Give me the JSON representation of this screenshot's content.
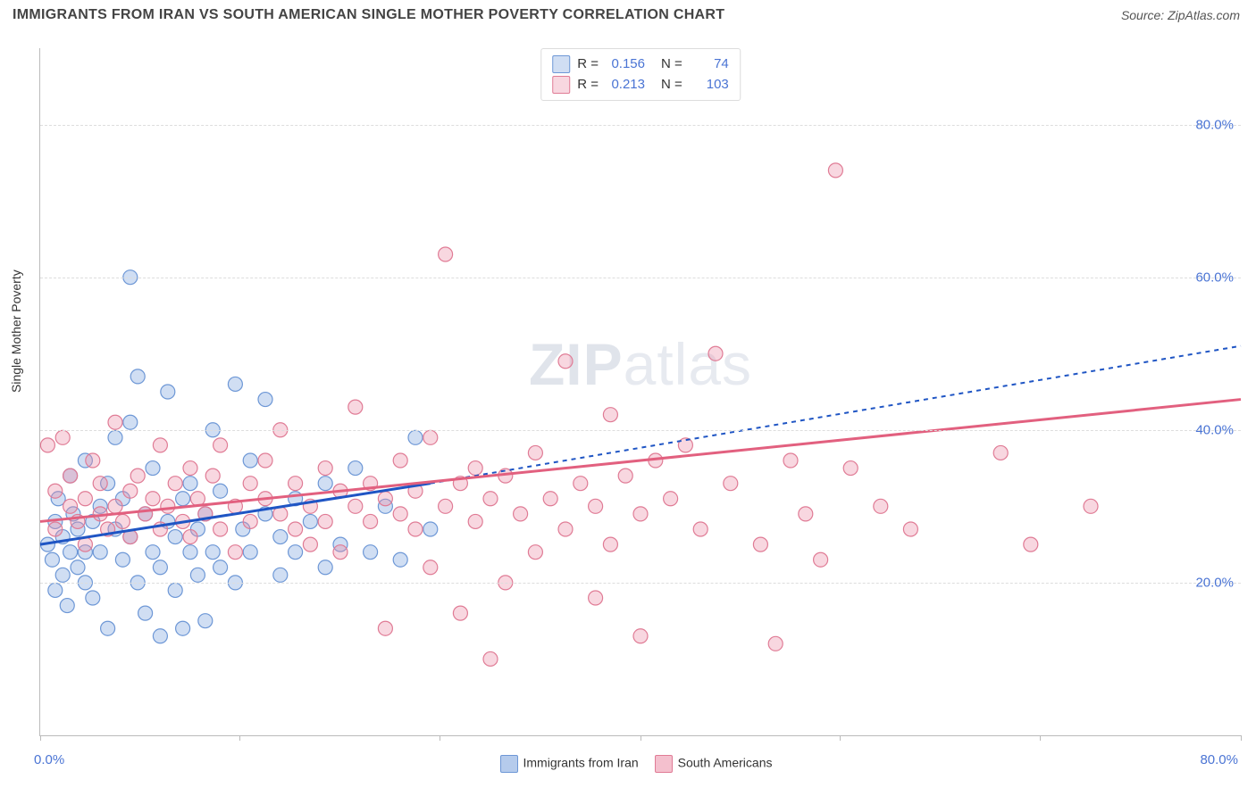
{
  "title": "IMMIGRANTS FROM IRAN VS SOUTH AMERICAN SINGLE MOTHER POVERTY CORRELATION CHART",
  "source_label": "Source: ZipAtlas.com",
  "y_axis_label": "Single Mother Poverty",
  "watermark": "ZIPatlas",
  "chart": {
    "type": "scatter",
    "xlim": [
      0,
      80
    ],
    "ylim": [
      0,
      90
    ],
    "y_ticks": [
      20,
      40,
      60,
      80
    ],
    "y_tick_labels": [
      "20.0%",
      "40.0%",
      "60.0%",
      "80.0%"
    ],
    "x_ticks": [
      0,
      13.3,
      26.6,
      40,
      53.3,
      66.6,
      80
    ],
    "x_origin_label": "0.0%",
    "x_max_label": "80.0%",
    "grid_color": "#dddddd",
    "background": "#ffffff",
    "marker_radius": 8,
    "marker_stroke_width": 1.2,
    "series": [
      {
        "name": "Immigrants from Iran",
        "fill": "rgba(120,160,220,0.35)",
        "stroke": "#6d97d6",
        "line_color": "#1f55c4",
        "line_dash_extend": "5,5",
        "R": "0.156",
        "N": "74",
        "trend": {
          "x1": 0,
          "y1": 25,
          "x2": 26,
          "y2": 33,
          "ext_x2": 80,
          "ext_y2": 51
        },
        "points": [
          [
            0.5,
            25
          ],
          [
            0.8,
            23
          ],
          [
            1,
            28
          ],
          [
            1,
            19
          ],
          [
            1.2,
            31
          ],
          [
            1.5,
            21
          ],
          [
            1.5,
            26
          ],
          [
            1.8,
            17
          ],
          [
            2,
            24
          ],
          [
            2,
            34
          ],
          [
            2.2,
            29
          ],
          [
            2.5,
            22
          ],
          [
            2.5,
            27
          ],
          [
            3,
            20
          ],
          [
            3,
            36
          ],
          [
            3,
            24
          ],
          [
            3.5,
            28
          ],
          [
            3.5,
            18
          ],
          [
            4,
            30
          ],
          [
            4,
            24
          ],
          [
            4.5,
            33
          ],
          [
            4.5,
            14
          ],
          [
            5,
            27
          ],
          [
            5,
            39
          ],
          [
            5.5,
            23
          ],
          [
            5.5,
            31
          ],
          [
            6,
            26
          ],
          [
            6,
            41
          ],
          [
            6.5,
            20
          ],
          [
            6.5,
            47
          ],
          [
            7,
            29
          ],
          [
            7,
            16
          ],
          [
            7.5,
            24
          ],
          [
            7.5,
            35
          ],
          [
            8,
            22
          ],
          [
            8,
            13
          ],
          [
            8.5,
            28
          ],
          [
            8.5,
            45
          ],
          [
            9,
            26
          ],
          [
            9,
            19
          ],
          [
            9.5,
            31
          ],
          [
            9.5,
            14
          ],
          [
            10,
            24
          ],
          [
            10,
            33
          ],
          [
            10.5,
            27
          ],
          [
            10.5,
            21
          ],
          [
            11,
            15
          ],
          [
            11,
            29
          ],
          [
            11.5,
            24
          ],
          [
            11.5,
            40
          ],
          [
            12,
            32
          ],
          [
            12,
            22
          ],
          [
            13,
            20
          ],
          [
            13,
            46
          ],
          [
            13.5,
            27
          ],
          [
            14,
            36
          ],
          [
            14,
            24
          ],
          [
            15,
            29
          ],
          [
            15,
            44
          ],
          [
            16,
            26
          ],
          [
            16,
            21
          ],
          [
            17,
            31
          ],
          [
            17,
            24
          ],
          [
            18,
            28
          ],
          [
            19,
            33
          ],
          [
            19,
            22
          ],
          [
            20,
            25
          ],
          [
            21,
            35
          ],
          [
            22,
            24
          ],
          [
            23,
            30
          ],
          [
            24,
            23
          ],
          [
            25,
            39
          ],
          [
            26,
            27
          ],
          [
            6,
            60
          ]
        ]
      },
      {
        "name": "South Americans",
        "fill": "rgba(235,140,165,0.35)",
        "stroke": "#e07b95",
        "line_color": "#e2607f",
        "R": "0.213",
        "N": "103",
        "trend": {
          "x1": 0,
          "y1": 28,
          "x2": 80,
          "y2": 44
        },
        "points": [
          [
            0.5,
            38
          ],
          [
            1,
            32
          ],
          [
            1,
            27
          ],
          [
            1.5,
            39
          ],
          [
            2,
            30
          ],
          [
            2,
            34
          ],
          [
            2.5,
            28
          ],
          [
            3,
            31
          ],
          [
            3,
            25
          ],
          [
            3.5,
            36
          ],
          [
            4,
            29
          ],
          [
            4,
            33
          ],
          [
            4.5,
            27
          ],
          [
            5,
            30
          ],
          [
            5,
            41
          ],
          [
            5.5,
            28
          ],
          [
            6,
            32
          ],
          [
            6,
            26
          ],
          [
            6.5,
            34
          ],
          [
            7,
            29
          ],
          [
            7.5,
            31
          ],
          [
            8,
            27
          ],
          [
            8,
            38
          ],
          [
            8.5,
            30
          ],
          [
            9,
            33
          ],
          [
            9.5,
            28
          ],
          [
            10,
            35
          ],
          [
            10,
            26
          ],
          [
            10.5,
            31
          ],
          [
            11,
            29
          ],
          [
            11.5,
            34
          ],
          [
            12,
            27
          ],
          [
            12,
            38
          ],
          [
            13,
            30
          ],
          [
            13,
            24
          ],
          [
            14,
            33
          ],
          [
            14,
            28
          ],
          [
            15,
            36
          ],
          [
            15,
            31
          ],
          [
            16,
            29
          ],
          [
            16,
            40
          ],
          [
            17,
            27
          ],
          [
            17,
            33
          ],
          [
            18,
            30
          ],
          [
            18,
            25
          ],
          [
            19,
            35
          ],
          [
            19,
            28
          ],
          [
            20,
            32
          ],
          [
            20,
            24
          ],
          [
            21,
            30
          ],
          [
            21,
            43
          ],
          [
            22,
            28
          ],
          [
            22,
            33
          ],
          [
            23,
            31
          ],
          [
            23,
            14
          ],
          [
            24,
            29
          ],
          [
            24,
            36
          ],
          [
            25,
            27
          ],
          [
            25,
            32
          ],
          [
            26,
            39
          ],
          [
            26,
            22
          ],
          [
            27,
            30
          ],
          [
            27,
            63
          ],
          [
            28,
            33
          ],
          [
            28,
            16
          ],
          [
            29,
            35
          ],
          [
            29,
            28
          ],
          [
            30,
            31
          ],
          [
            30,
            10
          ],
          [
            31,
            34
          ],
          [
            31,
            20
          ],
          [
            32,
            29
          ],
          [
            33,
            37
          ],
          [
            33,
            24
          ],
          [
            34,
            31
          ],
          [
            35,
            49
          ],
          [
            35,
            27
          ],
          [
            36,
            33
          ],
          [
            37,
            18
          ],
          [
            37,
            30
          ],
          [
            38,
            42
          ],
          [
            38,
            25
          ],
          [
            39,
            34
          ],
          [
            40,
            29
          ],
          [
            40,
            13
          ],
          [
            41,
            36
          ],
          [
            42,
            31
          ],
          [
            43,
            38
          ],
          [
            44,
            27
          ],
          [
            45,
            50
          ],
          [
            46,
            33
          ],
          [
            48,
            25
          ],
          [
            49,
            12
          ],
          [
            50,
            36
          ],
          [
            51,
            29
          ],
          [
            52,
            23
          ],
          [
            53,
            74
          ],
          [
            54,
            35
          ],
          [
            56,
            30
          ],
          [
            58,
            27
          ],
          [
            64,
            37
          ],
          [
            66,
            25
          ],
          [
            70,
            30
          ]
        ]
      }
    ]
  },
  "bottom_legend": {
    "items": [
      {
        "label": "Immigrants from Iran",
        "fill": "rgba(120,160,220,0.55)",
        "stroke": "#6d97d6"
      },
      {
        "label": "South Americans",
        "fill": "rgba(235,140,165,0.55)",
        "stroke": "#e07b95"
      }
    ]
  },
  "top_legend": {
    "R_label": "R =",
    "N_label": "N ="
  }
}
